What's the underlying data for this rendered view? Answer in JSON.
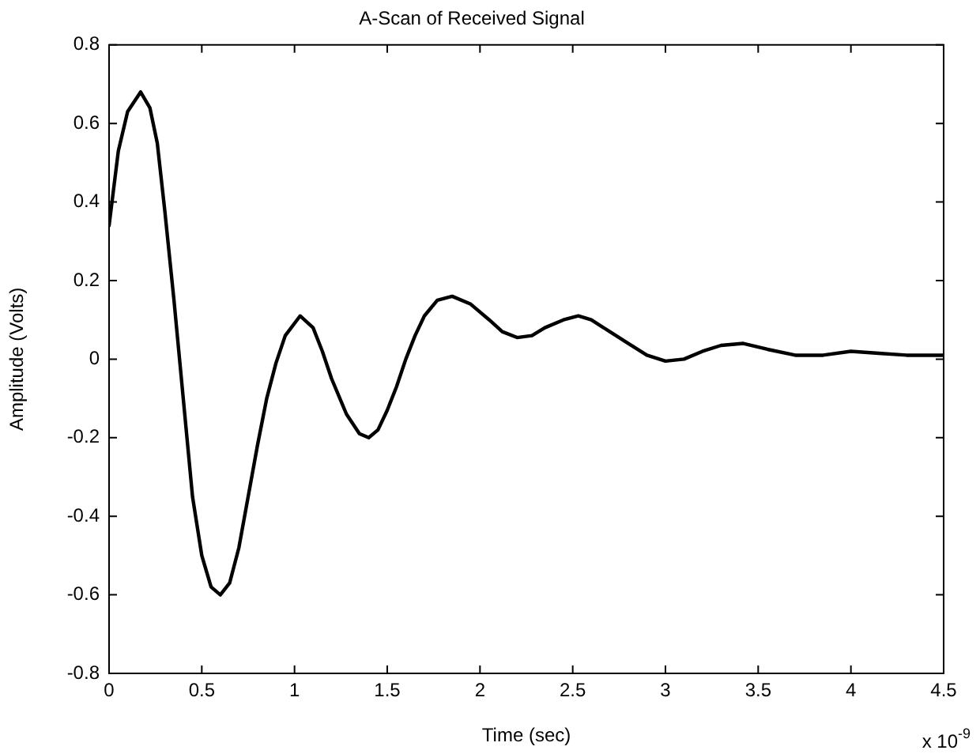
{
  "chart_data": {
    "type": "line",
    "title": "A-Scan of Received Signal",
    "xlabel": "Time (sec)",
    "ylabel": "Amplitude (Volts)",
    "annotations": [
      "x 10$^{-9}$"
    ],
    "xlim": [
      0,
      4.5
    ],
    "xticks": [
      0,
      0.5,
      1,
      1.5,
      2,
      2.5,
      3,
      3.5,
      4,
      4.5
    ],
    "ylim": [
      -0.8,
      0.8
    ],
    "yticks": [
      -0.8,
      -0.6,
      -0.4,
      -0.2,
      0,
      0.2,
      0.4,
      0.6,
      0.8
    ],
    "grid": false,
    "legend": false,
    "marker": "none",
    "line_style": "solid",
    "series": [
      {
        "color": "#000000",
        "x": [
          0,
          0.05,
          0.1,
          0.17,
          0.22,
          0.26,
          0.3,
          0.35,
          0.4,
          0.45,
          0.5,
          0.55,
          0.6,
          0.65,
          0.7,
          0.75,
          0.8,
          0.85,
          0.9,
          0.95,
          1.03,
          1.1,
          1.15,
          1.2,
          1.28,
          1.35,
          1.4,
          1.45,
          1.5,
          1.55,
          1.6,
          1.65,
          1.7,
          1.77,
          1.85,
          1.95,
          2.05,
          2.12,
          2.2,
          2.28,
          2.35,
          2.45,
          2.53,
          2.6,
          2.7,
          2.8,
          2.9,
          3.0,
          3.1,
          3.2,
          3.3,
          3.42,
          3.55,
          3.7,
          3.85,
          4.0,
          4.15,
          4.3,
          4.5
        ],
        "values": [
          0.34,
          0.53,
          0.63,
          0.68,
          0.64,
          0.55,
          0.38,
          0.15,
          -0.1,
          -0.35,
          -0.5,
          -0.58,
          -0.6,
          -0.57,
          -0.48,
          -0.35,
          -0.22,
          -0.1,
          -0.01,
          0.06,
          0.11,
          0.08,
          0.02,
          -0.05,
          -0.14,
          -0.19,
          -0.2,
          -0.18,
          -0.13,
          -0.07,
          0.0,
          0.06,
          0.11,
          0.15,
          0.16,
          0.14,
          0.1,
          0.07,
          0.055,
          0.06,
          0.08,
          0.1,
          0.11,
          0.1,
          0.07,
          0.04,
          0.01,
          -0.005,
          0.0,
          0.02,
          0.035,
          0.04,
          0.025,
          0.01,
          0.01,
          0.02,
          0.015,
          0.01,
          0.01
        ]
      }
    ]
  }
}
